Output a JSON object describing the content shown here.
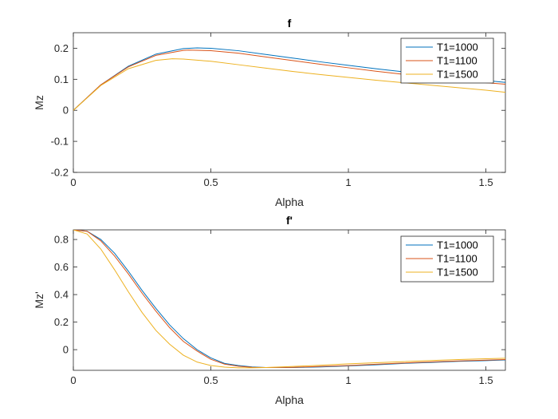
{
  "chart_data": [
    {
      "type": "line",
      "title": "f",
      "xlabel": "Alpha",
      "ylabel": "Mz",
      "xlim": [
        0,
        1.5708
      ],
      "ylim": [
        -0.2,
        0.25
      ],
      "xticks": [
        0,
        0.5,
        1,
        1.5
      ],
      "xtick_labels": [
        "0",
        "0.5",
        "1",
        "1.5"
      ],
      "yticks": [
        -0.2,
        -0.1,
        0,
        0.1,
        0.2
      ],
      "ytick_labels": [
        "-0.2",
        "-0.1",
        "0",
        "0.1",
        "0.2"
      ],
      "legend_position": "top-right",
      "grid": false,
      "series": [
        {
          "name": "T1=1000",
          "color": "#0072BD",
          "x": [
            0,
            0.1,
            0.2,
            0.3,
            0.4,
            0.45,
            0.5,
            0.6,
            0.7,
            0.8,
            0.9,
            1.0,
            1.1,
            1.2,
            1.3,
            1.4,
            1.5,
            1.5708
          ],
          "y": [
            0,
            0.082,
            0.142,
            0.181,
            0.199,
            0.201,
            0.2,
            0.192,
            0.18,
            0.168,
            0.156,
            0.145,
            0.134,
            0.124,
            0.114,
            0.104,
            0.096,
            0.09
          ]
        },
        {
          "name": "T1=1100",
          "color": "#D95319",
          "x": [
            0,
            0.1,
            0.2,
            0.3,
            0.4,
            0.42,
            0.5,
            0.6,
            0.7,
            0.8,
            0.9,
            1.0,
            1.1,
            1.2,
            1.3,
            1.4,
            1.5,
            1.5708
          ],
          "y": [
            0,
            0.082,
            0.14,
            0.177,
            0.193,
            0.194,
            0.192,
            0.184,
            0.172,
            0.16,
            0.148,
            0.137,
            0.126,
            0.116,
            0.106,
            0.097,
            0.089,
            0.084
          ]
        },
        {
          "name": "T1=1500",
          "color": "#EDB120",
          "x": [
            0,
            0.1,
            0.2,
            0.3,
            0.36,
            0.4,
            0.5,
            0.6,
            0.7,
            0.8,
            0.9,
            1.0,
            1.1,
            1.2,
            1.3,
            1.4,
            1.5,
            1.5708
          ],
          "y": [
            0,
            0.08,
            0.134,
            0.161,
            0.166,
            0.165,
            0.158,
            0.147,
            0.136,
            0.125,
            0.115,
            0.106,
            0.097,
            0.089,
            0.081,
            0.073,
            0.065,
            0.058
          ]
        }
      ]
    },
    {
      "type": "line",
      "title": "f'",
      "xlabel": "Alpha",
      "ylabel": "Mz'",
      "xlim": [
        0,
        1.5708
      ],
      "ylim": [
        -0.15,
        0.87
      ],
      "xticks": [
        0,
        0.5,
        1,
        1.5
      ],
      "xtick_labels": [
        "0",
        "0.5",
        "1",
        "1.5"
      ],
      "yticks": [
        0,
        0.2,
        0.4,
        0.6,
        0.8
      ],
      "ytick_labels": [
        "0",
        "0.2",
        "0.4",
        "0.6",
        "0.8"
      ],
      "legend_position": "top-right",
      "grid": false,
      "series": [
        {
          "name": "T1=1000",
          "color": "#0072BD",
          "x": [
            0,
            0.05,
            0.1,
            0.15,
            0.2,
            0.25,
            0.3,
            0.35,
            0.4,
            0.45,
            0.5,
            0.55,
            0.6,
            0.65,
            0.7,
            0.8,
            0.9,
            1.0,
            1.1,
            1.2,
            1.3,
            1.4,
            1.5,
            1.5708
          ],
          "y": [
            0.87,
            0.86,
            0.8,
            0.7,
            0.57,
            0.43,
            0.3,
            0.18,
            0.08,
            0.0,
            -0.06,
            -0.1,
            -0.115,
            -0.125,
            -0.13,
            -0.13,
            -0.125,
            -0.118,
            -0.11,
            -0.1,
            -0.093,
            -0.085,
            -0.08,
            -0.075
          ]
        },
        {
          "name": "T1=1100",
          "color": "#D95319",
          "x": [
            0,
            0.05,
            0.1,
            0.15,
            0.2,
            0.25,
            0.3,
            0.35,
            0.4,
            0.45,
            0.5,
            0.55,
            0.6,
            0.65,
            0.7,
            0.8,
            0.9,
            1.0,
            1.1,
            1.2,
            1.3,
            1.4,
            1.5,
            1.5708
          ],
          "y": [
            0.87,
            0.86,
            0.79,
            0.68,
            0.55,
            0.41,
            0.28,
            0.16,
            0.06,
            -0.01,
            -0.07,
            -0.105,
            -0.12,
            -0.128,
            -0.13,
            -0.128,
            -0.122,
            -0.115,
            -0.106,
            -0.097,
            -0.089,
            -0.082,
            -0.076,
            -0.072
          ]
        },
        {
          "name": "T1=1500",
          "color": "#EDB120",
          "x": [
            0,
            0.05,
            0.1,
            0.15,
            0.2,
            0.25,
            0.3,
            0.35,
            0.4,
            0.45,
            0.5,
            0.55,
            0.6,
            0.65,
            0.7,
            0.8,
            0.9,
            1.0,
            1.1,
            1.2,
            1.3,
            1.4,
            1.5,
            1.5708
          ],
          "y": [
            0.87,
            0.84,
            0.73,
            0.58,
            0.42,
            0.27,
            0.14,
            0.04,
            -0.04,
            -0.09,
            -0.115,
            -0.127,
            -0.132,
            -0.132,
            -0.13,
            -0.122,
            -0.113,
            -0.103,
            -0.095,
            -0.087,
            -0.079,
            -0.072,
            -0.066,
            -0.062
          ]
        }
      ]
    }
  ]
}
